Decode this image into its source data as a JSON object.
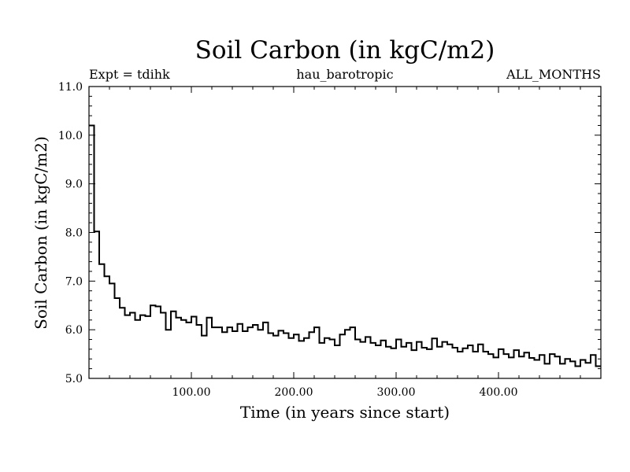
{
  "chart_data": {
    "type": "line",
    "step": true,
    "title": "Soil Carbon (in kgC/m2)",
    "subtitle_left": "Expt = tdihk",
    "subtitle_center": "hau_barotropic",
    "subtitle_right": "ALL_MONTHS",
    "xlabel": "Time (in years since start)",
    "ylabel": "Soil Carbon (in kgC/m2)",
    "xlim": [
      0,
      500
    ],
    "ylim": [
      5.0,
      11.0
    ],
    "xticks": [
      100,
      200,
      300,
      400
    ],
    "xtick_labels": [
      "100.00",
      "200.00",
      "300.00",
      "400.00"
    ],
    "yticks": [
      5.0,
      6.0,
      7.0,
      8.0,
      9.0,
      10.0,
      11.0
    ],
    "ytick_labels": [
      "5.0",
      "6.0",
      "7.0",
      "8.0",
      "9.0",
      "10.0",
      "11.0"
    ],
    "series": [
      {
        "name": "Soil Carbon",
        "color": "#000000",
        "x": [
          0,
          5,
          10,
          15,
          20,
          25,
          30,
          35,
          40,
          45,
          50,
          55,
          60,
          65,
          70,
          75,
          80,
          85,
          90,
          95,
          100,
          105,
          110,
          115,
          120,
          125,
          130,
          135,
          140,
          145,
          150,
          155,
          160,
          165,
          170,
          175,
          180,
          185,
          190,
          195,
          200,
          205,
          210,
          215,
          220,
          225,
          230,
          235,
          240,
          245,
          250,
          255,
          260,
          265,
          270,
          275,
          280,
          285,
          290,
          295,
          300,
          305,
          310,
          315,
          320,
          325,
          330,
          335,
          340,
          345,
          350,
          355,
          360,
          365,
          370,
          375,
          380,
          385,
          390,
          395,
          400,
          405,
          410,
          415,
          420,
          425,
          430,
          435,
          440,
          445,
          450,
          455,
          460,
          465,
          470,
          475,
          480,
          485,
          490,
          495
        ],
        "values": [
          10.2,
          8.02,
          7.35,
          7.1,
          6.95,
          6.65,
          6.45,
          6.3,
          6.35,
          6.2,
          6.3,
          6.28,
          6.5,
          6.48,
          6.35,
          6.0,
          6.38,
          6.25,
          6.2,
          6.15,
          6.27,
          6.1,
          5.88,
          6.25,
          6.05,
          6.05,
          5.95,
          6.05,
          5.97,
          6.12,
          5.97,
          6.05,
          6.1,
          6.0,
          6.15,
          5.93,
          5.88,
          5.98,
          5.93,
          5.83,
          5.9,
          5.77,
          5.83,
          5.95,
          6.05,
          5.73,
          5.83,
          5.8,
          5.68,
          5.9,
          6.0,
          6.05,
          5.8,
          5.75,
          5.85,
          5.73,
          5.68,
          5.78,
          5.65,
          5.62,
          5.8,
          5.65,
          5.73,
          5.58,
          5.75,
          5.63,
          5.6,
          5.82,
          5.65,
          5.75,
          5.7,
          5.63,
          5.55,
          5.62,
          5.68,
          5.55,
          5.7,
          5.55,
          5.5,
          5.43,
          5.6,
          5.5,
          5.43,
          5.58,
          5.45,
          5.53,
          5.42,
          5.38,
          5.48,
          5.3,
          5.5,
          5.45,
          5.3,
          5.4,
          5.35,
          5.25,
          5.38,
          5.32,
          5.48,
          5.25
        ]
      }
    ]
  }
}
